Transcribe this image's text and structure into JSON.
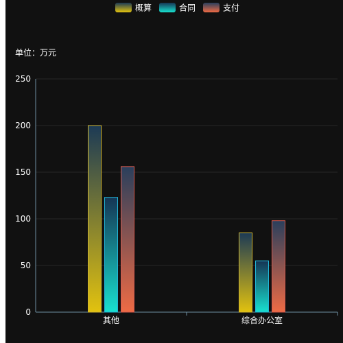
{
  "chart_data": {
    "type": "bar",
    "unit_label": "单位：万元",
    "categories": [
      "其他",
      "综合办公室"
    ],
    "series": [
      {
        "name": "概算",
        "values": [
          200,
          85
        ],
        "gradient_top": "#1c3a55",
        "gradient_bottom": "#e2c20f",
        "border": "#d4b830"
      },
      {
        "name": "合同",
        "values": [
          123,
          55
        ],
        "gradient_top": "#153554",
        "gradient_bottom": "#18e0cf",
        "border": "#22b7d8"
      },
      {
        "name": "支付",
        "values": [
          156,
          98
        ],
        "gradient_top": "#2a3f5c",
        "gradient_bottom": "#ee6b45",
        "border": "#d85a4e"
      }
    ],
    "ylim": [
      0,
      250
    ],
    "yticks": [
      0,
      50,
      100,
      150,
      200,
      250
    ],
    "grid": true,
    "legend_position": "top-center",
    "colors": {
      "background": "#111111",
      "axis_line": "#6f8fa3",
      "grid_line": "#262626",
      "text": "#ffffff"
    }
  }
}
